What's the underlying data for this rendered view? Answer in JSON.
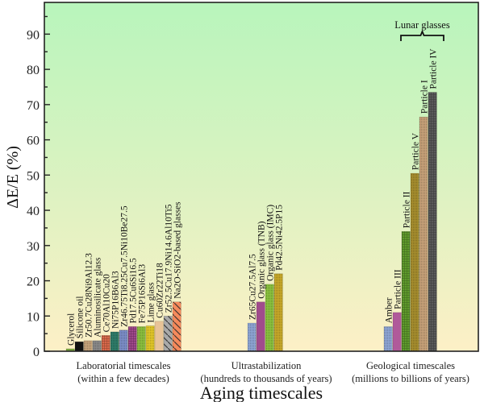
{
  "chart_data": {
    "type": "bar",
    "title": "",
    "xlabel": "Aging timescales",
    "ylabel": "ΔE/E (%)",
    "ylim": [
      0,
      99
    ],
    "yticks": [
      0,
      10,
      20,
      30,
      40,
      50,
      60,
      70,
      80,
      90
    ],
    "grid": false,
    "background": {
      "top_color": "#b8f5bc",
      "bottom_color": "#fdf0c6"
    },
    "groups": [
      {
        "name": "Laboratorial timescales",
        "label_line1": "Laboratorial timescales",
        "label_line2": "(within a few decades)",
        "bars": [
          {
            "label": "Glycerol",
            "value": 0.7,
            "color": "#7aa83e",
            "pattern": "solid"
          },
          {
            "label": "Silicone oil",
            "value": 2.7,
            "color": "#111111",
            "pattern": "solid"
          },
          {
            "label": "Zr50.7Cu28Ni9Al12.3",
            "value": 3.0,
            "color": "#c8a57c",
            "pattern": "dots"
          },
          {
            "label": "Aluminosilicate glass",
            "value": 3.0,
            "color": "#8a8a8a",
            "pattern": "dots"
          },
          {
            "label": "Ce70Al10Cu20",
            "value": 4.5,
            "color": "#d9694a",
            "pattern": "grid"
          },
          {
            "label": "Ni75P16B6Al3",
            "value": 5.5,
            "color": "#2f7d6a",
            "pattern": "dots"
          },
          {
            "label": "Zr46.75Ti8.25Cu7.5Ni10Be27.5",
            "value": 6.0,
            "color": "#7d8fc9",
            "pattern": "dots"
          },
          {
            "label": "Pd17.5Cu6Si16.5",
            "value": 7.0,
            "color": "#a0478c",
            "pattern": "grid"
          },
          {
            "label": "Fe75P16Si6Al3",
            "value": 7.0,
            "color": "#8cc13f",
            "pattern": "dots"
          },
          {
            "label": "Lime glass",
            "value": 7.2,
            "color": "#e4c928",
            "pattern": "dots"
          },
          {
            "label": "Cu60Zr22Ti18",
            "value": 8.5,
            "color": "#e8c397",
            "pattern": "solid"
          },
          {
            "label": "Zr52.5Cu17.9Ni14.6Al10Ti5",
            "value": 10.0,
            "color": "#a9a9a9",
            "pattern": "hatch"
          },
          {
            "label": "Na2O-SiO2-based glasses",
            "value": 14.0,
            "color": "#f58a5c",
            "pattern": "hatch"
          }
        ]
      },
      {
        "name": "Ultrastabilization",
        "label_line1": "Ultrastabilization",
        "label_line2": "(hundreds to thousands of years)",
        "bars": [
          {
            "label": "Zr65Cu27.5Al7.5",
            "value": 8.0,
            "color": "#8fa6d6",
            "pattern": "dots"
          },
          {
            "label": "Organic glass (TNB)",
            "value": 14.0,
            "color": "#a04b8c",
            "pattern": "solid"
          },
          {
            "label": "Organic glass (IMC)",
            "value": 19.0,
            "color": "#8cc43f",
            "pattern": "dots"
          },
          {
            "label": "Pd42.5Ni42.5P15",
            "value": 22.0,
            "color": "#c9aa2a",
            "pattern": "dots"
          }
        ]
      },
      {
        "name": "Geological timescales",
        "label_line1": "Geological timescales",
        "label_line2": "(millions to billions of years)",
        "bars": [
          {
            "label": "Amber",
            "value": 7.0,
            "color": "#8fa6d6",
            "pattern": "dots"
          },
          {
            "label": "Particle III",
            "value": 11.0,
            "color": "#b05a9a",
            "pattern": "solid"
          },
          {
            "label": "Particle II",
            "value": 34.0,
            "color": "#5f9a2c",
            "pattern": "grid"
          },
          {
            "label": "Particle V",
            "value": 50.5,
            "color": "#a88f2e",
            "pattern": "dots"
          },
          {
            "label": "Particle I",
            "value": 66.5,
            "color": "#c9a37a",
            "pattern": "dots"
          },
          {
            "label": "Particle IV",
            "value": 73.5,
            "color": "#5a5a5a",
            "pattern": "grid"
          }
        ]
      }
    ],
    "annotations": [
      {
        "text": "Lunar glasses",
        "spans": [
          "Particle II",
          "Particle V",
          "Particle I",
          "Particle IV"
        ]
      }
    ]
  }
}
